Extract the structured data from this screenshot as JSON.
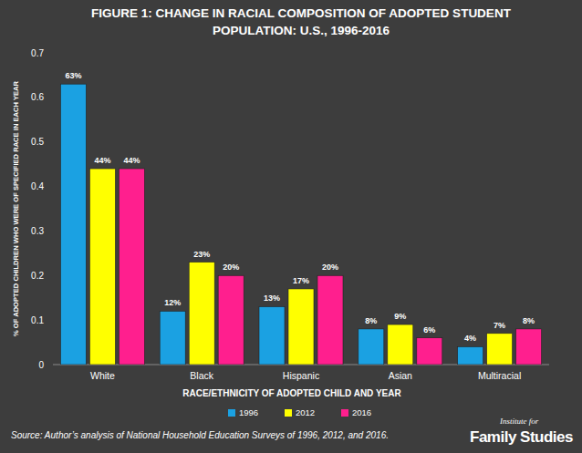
{
  "chart_data": {
    "type": "bar",
    "title": "FIGURE 1: CHANGE IN RACIAL COMPOSITION OF ADOPTED STUDENT POPULATION: U.S., 1996-2016",
    "x_label": "RACE/ETHNICITY OF ADOPTED CHILD AND YEAR",
    "y_label": "% OF ADOPTED CHILDREN WHO WERE OF SPECIFIED RACE IN EACH YEAR",
    "categories": [
      "White",
      "Black",
      "Hispanic",
      "Asian",
      "Multiracial"
    ],
    "series": [
      {
        "name": "1996",
        "color": "#1ba1e2",
        "values": [
          0.63,
          0.12,
          0.13,
          0.08,
          0.04
        ],
        "value_labels": [
          "63%",
          "12%",
          "13%",
          "8%",
          "4%"
        ]
      },
      {
        "name": "2012",
        "color": "#ffff00",
        "values": [
          0.44,
          0.23,
          0.17,
          0.09,
          0.07
        ],
        "value_labels": [
          "44%",
          "23%",
          "17%",
          "9%",
          "7%"
        ]
      },
      {
        "name": "2016",
        "color": "#ff1f8e",
        "values": [
          0.44,
          0.2,
          0.2,
          0.06,
          0.08
        ],
        "value_labels": [
          "44%",
          "20%",
          "20%",
          "6%",
          "8%"
        ]
      }
    ],
    "ylim": [
      0,
      0.7
    ],
    "yticks": [
      0,
      0.1,
      0.2,
      0.3,
      0.4,
      0.5,
      0.6,
      0.7
    ],
    "grid": false,
    "legend": "bottom",
    "data_labels": true,
    "annotations": [
      "Source: Author’s  analysis of National Household Education Surveys of 1996, 2012, and 2016.",
      "Institute for",
      "Family Studies"
    ]
  }
}
